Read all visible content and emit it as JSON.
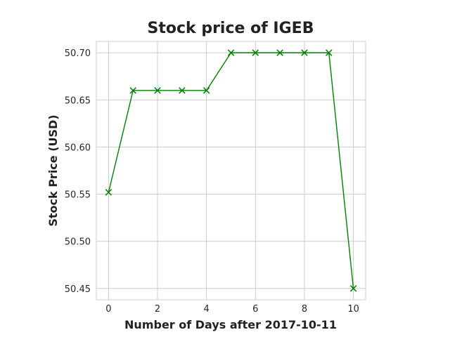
{
  "chart_data": {
    "type": "line",
    "title": "Stock price of IGEB",
    "xlabel": "Number of Days after 2017-10-11",
    "ylabel": "Stock Price (USD)",
    "x": [
      0,
      1,
      2,
      3,
      4,
      5,
      6,
      7,
      8,
      9,
      10
    ],
    "series": [
      {
        "values": [
          50.552,
          50.66,
          50.66,
          50.66,
          50.66,
          50.7,
          50.7,
          50.7,
          50.7,
          50.7,
          50.45
        ],
        "color": "#008000",
        "marker": "x"
      }
    ],
    "xlim": [
      -0.5,
      10.5
    ],
    "ylim": [
      50.438,
      50.712
    ],
    "xticks": [
      0,
      2,
      4,
      6,
      8,
      10
    ],
    "xtick_labels": [
      "0",
      "2",
      "4",
      "6",
      "8",
      "10"
    ],
    "yticks": [
      50.45,
      50.5,
      50.55,
      50.6,
      50.65,
      50.7
    ],
    "ytick_labels": [
      "50.45",
      "50.50",
      "50.55",
      "50.60",
      "50.65",
      "50.70"
    ],
    "grid": true,
    "legend": "none"
  }
}
